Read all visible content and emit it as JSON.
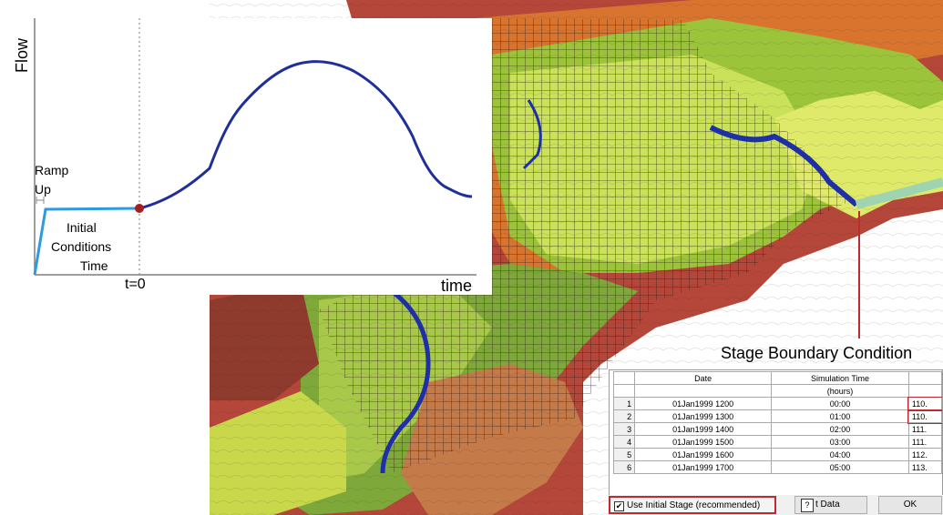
{
  "chart_data": {
    "type": "line",
    "ylabel": "Flow",
    "xlabel": "time",
    "marker_label": "t=0",
    "annotations": [
      "Ramp",
      "Up",
      "Initial",
      "Conditions",
      "Time"
    ],
    "series": [
      {
        "values_description_omitted": true,
        "color": "#1f2f9a"
      }
    ],
    "ramp_color": "#2e9be0",
    "t0_point_color": "#a42020"
  },
  "boundary": {
    "title": "Stage Boundary Condition",
    "columns": [
      "Date",
      "Simulation Time",
      ""
    ],
    "subheader": [
      "",
      "(hours)",
      ""
    ],
    "rows": [
      {
        "n": "1",
        "date": "01Jan1999 1200",
        "time": "00:00",
        "value": "110."
      },
      {
        "n": "2",
        "date": "01Jan1999 1300",
        "time": "01:00",
        "value": "110."
      },
      {
        "n": "3",
        "date": "01Jan1999 1400",
        "time": "02:00",
        "value": "111."
      },
      {
        "n": "4",
        "date": "01Jan1999 1500",
        "time": "03:00",
        "value": "111."
      },
      {
        "n": "5",
        "date": "01Jan1999 1600",
        "time": "04:00",
        "value": "112."
      },
      {
        "n": "6",
        "date": "01Jan1999 1700",
        "time": "05:00",
        "value": "113."
      }
    ],
    "checkbox_label": "Use Initial Stage (recommended)",
    "checkbox_checked": true,
    "plot_button": "t Data",
    "ok_button": "OK",
    "highlight_color": "#c0292d"
  }
}
